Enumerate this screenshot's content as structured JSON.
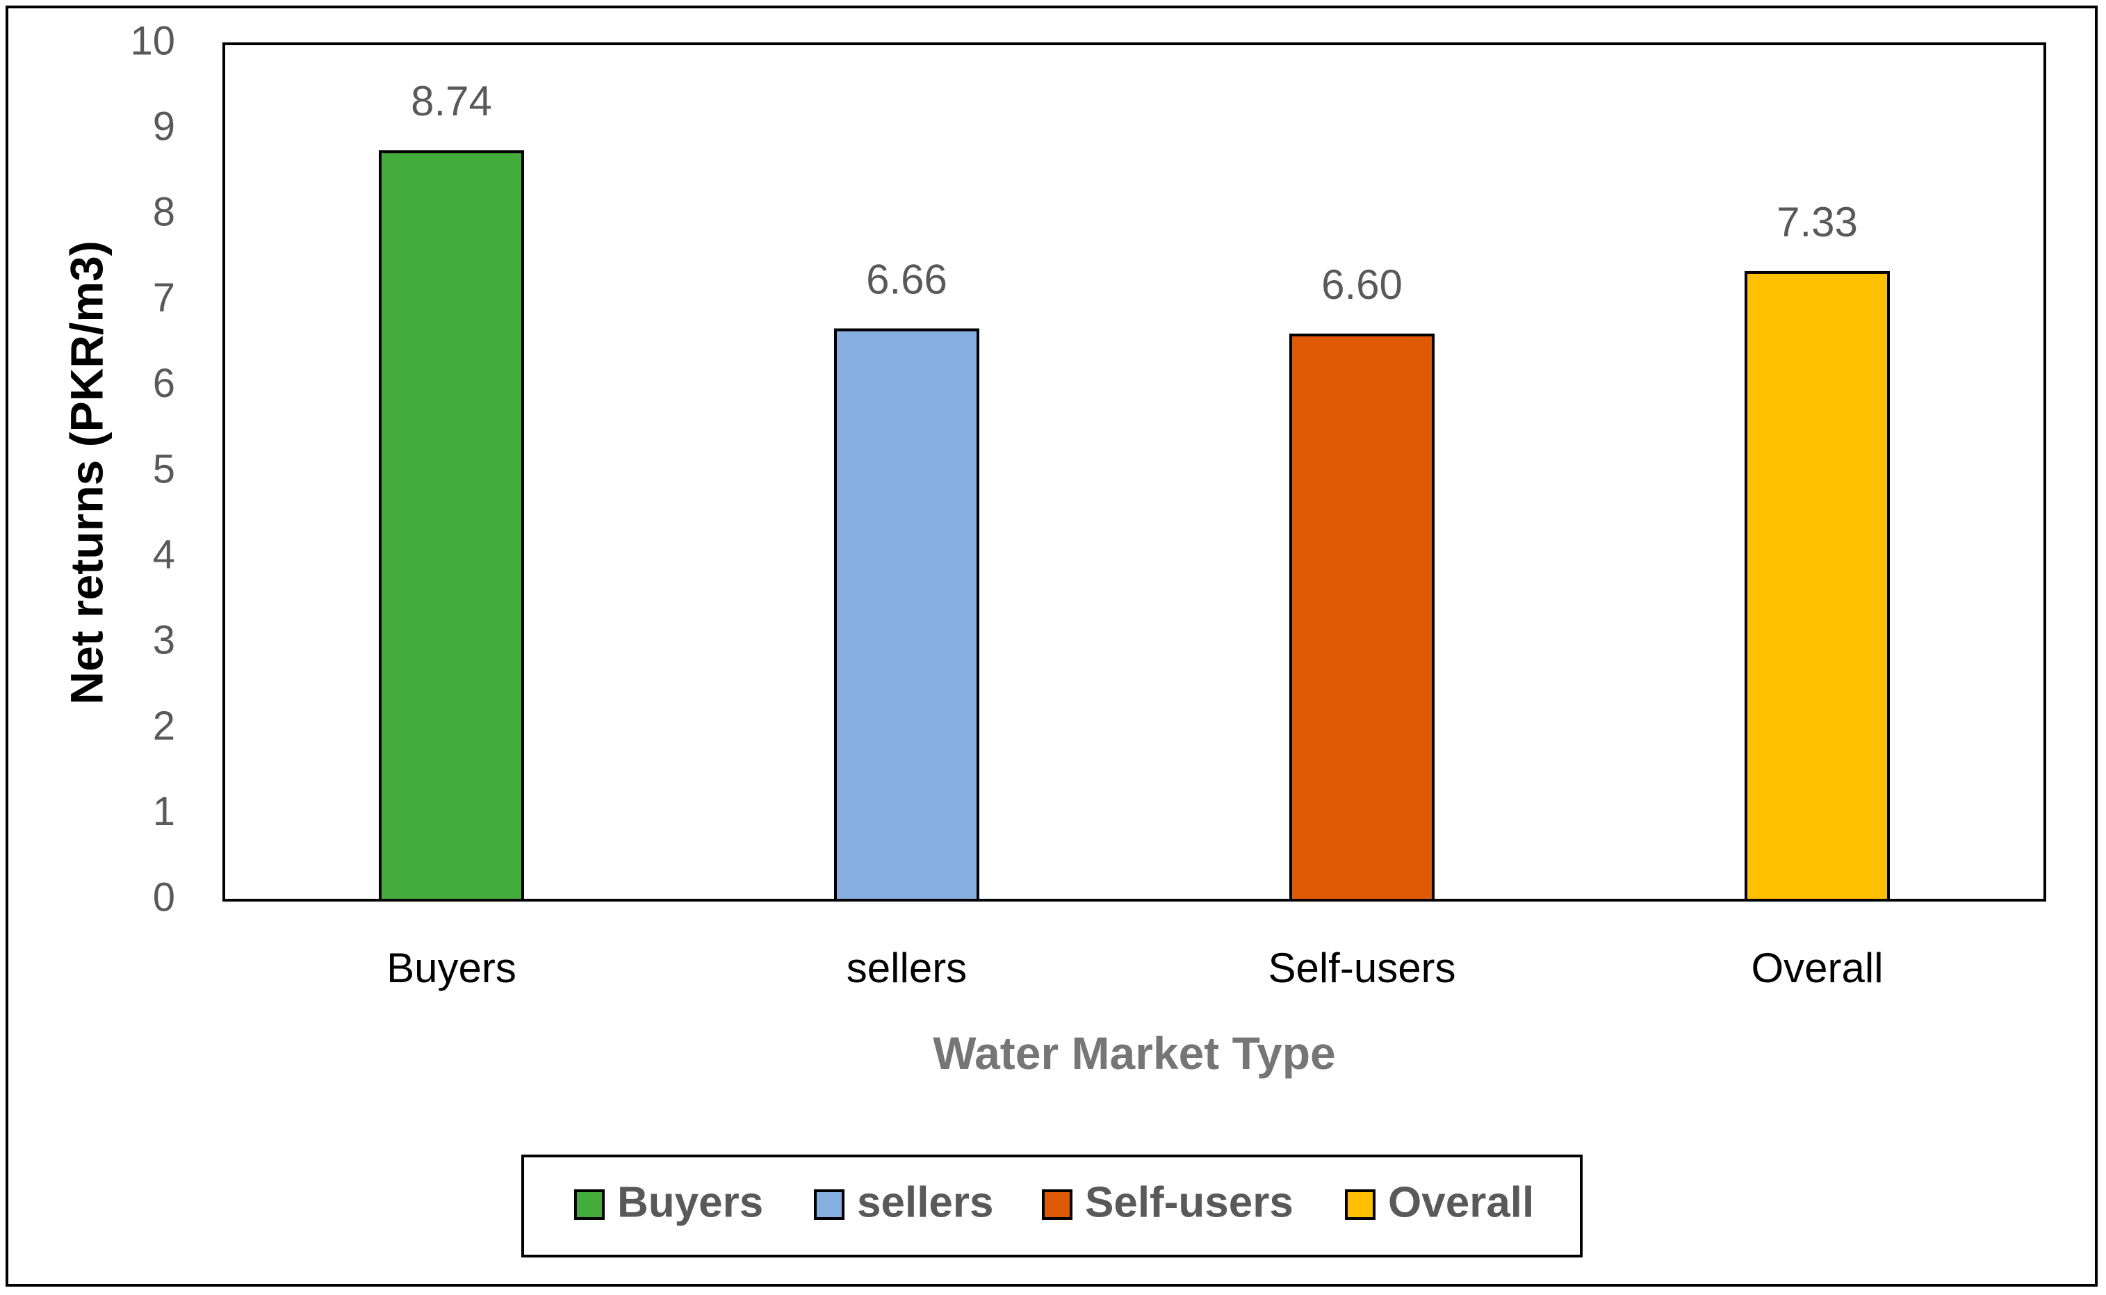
{
  "chart_data": {
    "type": "bar",
    "title": "",
    "xlabel": "Water Market Type",
    "ylabel": "Net returns (PKR/m3)",
    "ylim": [
      0,
      10
    ],
    "yticks": [
      "0",
      "1",
      "2",
      "3",
      "4",
      "5",
      "6",
      "7",
      "8",
      "9",
      "10"
    ],
    "categories": [
      "Buyers",
      "sellers",
      "Self-users",
      "Overall"
    ],
    "values": [
      8.74,
      6.66,
      6.6,
      7.33
    ],
    "data_labels": [
      "8.74",
      "6.66",
      "6.60",
      "7.33"
    ],
    "colors": [
      "#43AC3A",
      "#86AEDF",
      "#E05A05",
      "#FFC000"
    ],
    "grid": false,
    "legend": {
      "placement": "bottom",
      "entries": [
        "Buyers",
        "sellers",
        "Self-users",
        "Overall"
      ]
    }
  }
}
